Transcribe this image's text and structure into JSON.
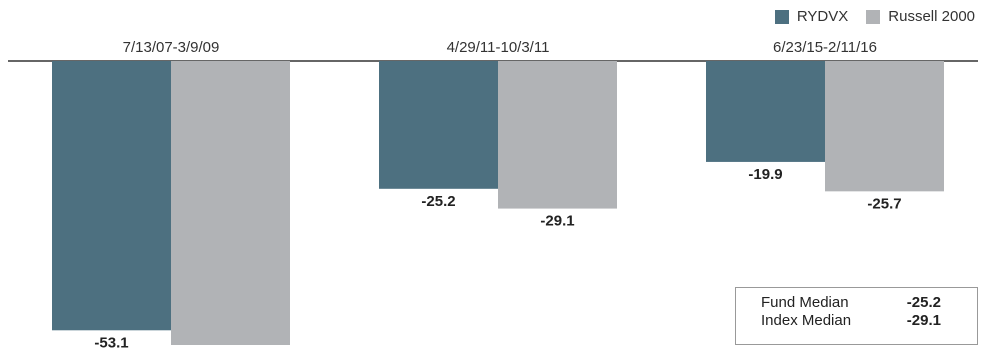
{
  "chart_data": {
    "type": "bar",
    "categories": [
      "7/13/07-3/9/09",
      "4/29/11-10/3/11",
      "6/23/15-2/11/16"
    ],
    "series": [
      {
        "name": "RYDVX",
        "values": [
          -53.1,
          -25.2,
          -19.9
        ],
        "color": "#4d7080"
      },
      {
        "name": "Russell 2000",
        "values": [
          -56.0,
          -29.1,
          -25.7
        ],
        "color": "#b1b3b6"
      }
    ],
    "data_labels": [
      [
        "-53.1",
        "-25.2",
        "-19.9"
      ],
      [
        "",
        "-29.1",
        "-25.7"
      ]
    ],
    "ylim": [
      -56.0,
      0
    ],
    "grid": false,
    "legend_position": "top-right",
    "xaxis_position": "top"
  },
  "legend": {
    "items": [
      {
        "label": "RYDVX",
        "color": "#4d7080"
      },
      {
        "label": "Russell 2000",
        "color": "#b1b3b6"
      }
    ]
  },
  "medians": {
    "fund_label": "Fund Median",
    "fund_value": "-25.2",
    "index_label": "Index Median",
    "index_value": "-29.1"
  }
}
